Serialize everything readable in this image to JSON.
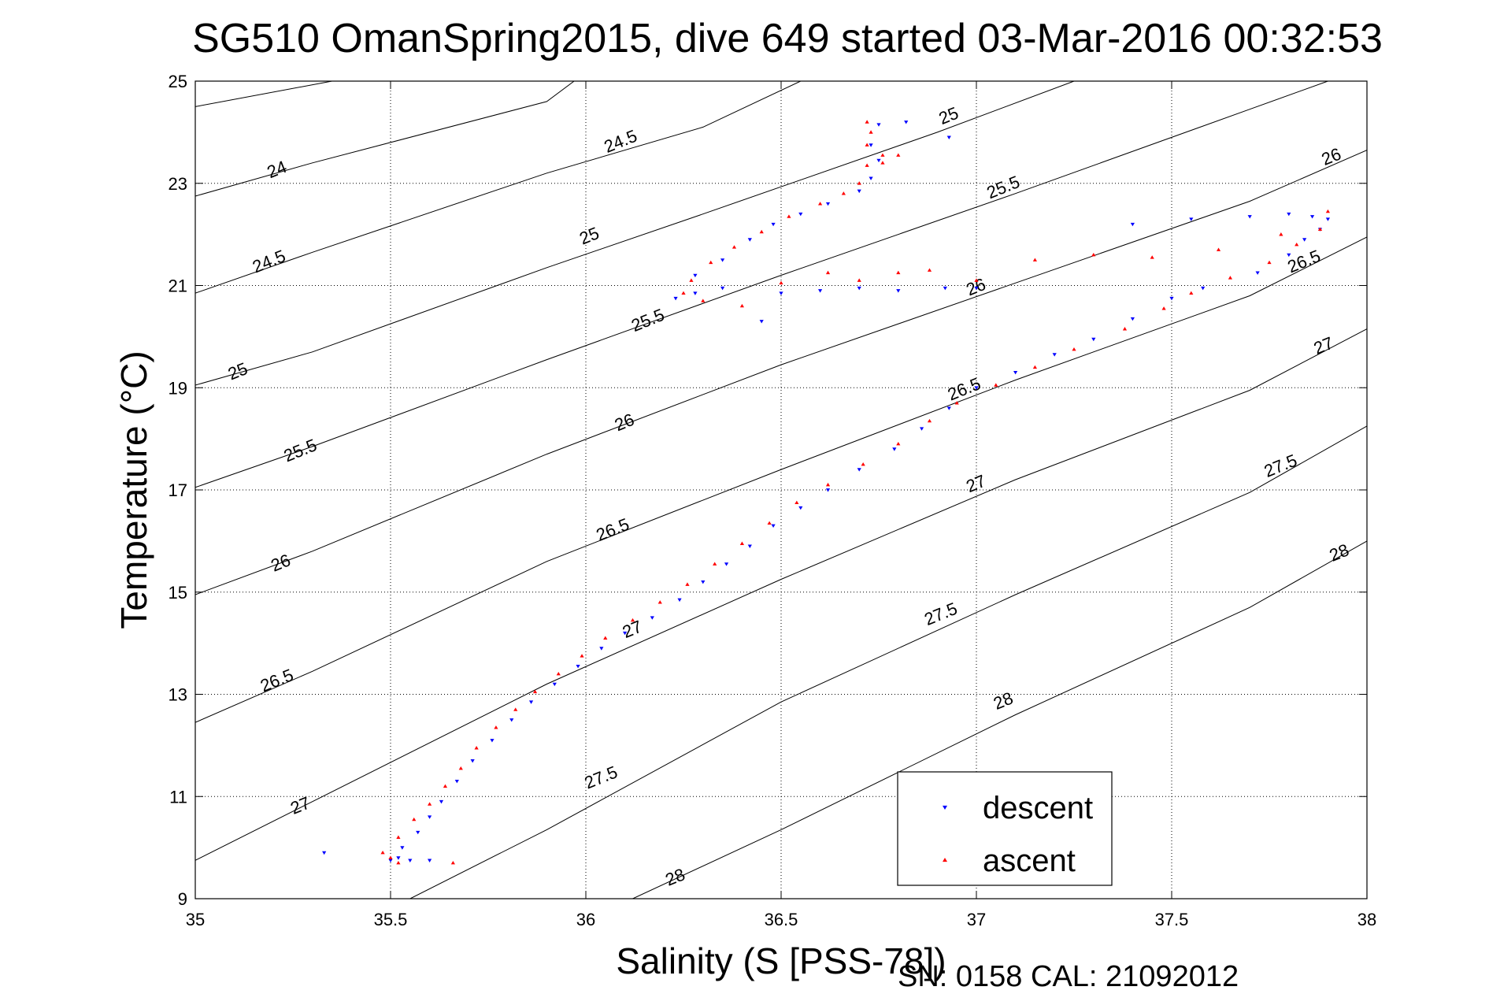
{
  "chart_data": {
    "type": "scatter",
    "title": "SG510 OmanSpring2015, dive 649 started 03-Mar-2016 00:32:53",
    "xlabel": "Salinity (S [PSS-78])",
    "ylabel": "Temperature (°C)",
    "xlim": [
      35,
      38
    ],
    "ylim": [
      9,
      25
    ],
    "xticks": [
      "35",
      "35.5",
      "36",
      "36.5",
      "37",
      "37.5",
      "38"
    ],
    "yticks": [
      "9",
      "11",
      "13",
      "15",
      "17",
      "19",
      "21",
      "23",
      "25"
    ],
    "grid": true,
    "legend_position": "bottom-right",
    "footer": "SN: 0158  CAL: 21092012",
    "series": [
      {
        "name": "descent",
        "color": "#0000ff",
        "marker": "triangle-down",
        "points": [
          [
            35.33,
            9.9
          ],
          [
            35.5,
            9.75
          ],
          [
            35.52,
            9.8
          ],
          [
            35.55,
            9.75
          ],
          [
            35.6,
            9.75
          ],
          [
            35.53,
            10.0
          ],
          [
            35.57,
            10.3
          ],
          [
            35.6,
            10.6
          ],
          [
            35.63,
            10.9
          ],
          [
            35.67,
            11.3
          ],
          [
            35.71,
            11.7
          ],
          [
            35.76,
            12.1
          ],
          [
            35.81,
            12.5
          ],
          [
            35.86,
            12.85
          ],
          [
            35.92,
            13.2
          ],
          [
            35.98,
            13.55
          ],
          [
            36.04,
            13.9
          ],
          [
            36.1,
            14.2
          ],
          [
            36.17,
            14.5
          ],
          [
            36.24,
            14.85
          ],
          [
            36.3,
            15.2
          ],
          [
            36.36,
            15.55
          ],
          [
            36.42,
            15.9
          ],
          [
            36.48,
            16.3
          ],
          [
            36.55,
            16.65
          ],
          [
            36.62,
            17.0
          ],
          [
            36.7,
            17.4
          ],
          [
            36.79,
            17.8
          ],
          [
            36.86,
            18.2
          ],
          [
            36.93,
            18.6
          ],
          [
            37.0,
            19.0
          ],
          [
            37.1,
            19.3
          ],
          [
            37.2,
            19.65
          ],
          [
            37.3,
            19.95
          ],
          [
            37.4,
            20.35
          ],
          [
            37.5,
            20.75
          ],
          [
            37.58,
            20.95
          ],
          [
            37.72,
            21.25
          ],
          [
            37.8,
            21.6
          ],
          [
            37.84,
            21.9
          ],
          [
            37.88,
            22.1
          ],
          [
            37.9,
            22.3
          ],
          [
            37.86,
            22.35
          ],
          [
            37.8,
            22.4
          ],
          [
            37.7,
            22.35
          ],
          [
            37.55,
            22.3
          ],
          [
            37.4,
            22.2
          ],
          [
            36.23,
            20.75
          ],
          [
            36.28,
            20.85
          ],
          [
            36.35,
            20.95
          ],
          [
            36.45,
            20.3
          ],
          [
            36.5,
            20.85
          ],
          [
            36.6,
            20.9
          ],
          [
            36.7,
            20.95
          ],
          [
            36.8,
            20.9
          ],
          [
            36.92,
            20.95
          ],
          [
            37.0,
            20.95
          ],
          [
            36.28,
            21.2
          ],
          [
            36.35,
            21.5
          ],
          [
            36.42,
            21.9
          ],
          [
            36.48,
            22.2
          ],
          [
            36.55,
            22.4
          ],
          [
            36.62,
            22.6
          ],
          [
            36.7,
            22.85
          ],
          [
            36.73,
            23.1
          ],
          [
            36.75,
            23.45
          ],
          [
            36.73,
            23.75
          ],
          [
            36.75,
            24.15
          ],
          [
            36.82,
            24.2
          ],
          [
            36.93,
            23.9
          ]
        ]
      },
      {
        "name": "ascent",
        "color": "#ff0000",
        "marker": "triangle-up",
        "points": [
          [
            35.48,
            9.9
          ],
          [
            35.5,
            9.8
          ],
          [
            35.52,
            9.7
          ],
          [
            35.66,
            9.7
          ],
          [
            35.52,
            10.2
          ],
          [
            35.56,
            10.55
          ],
          [
            35.6,
            10.85
          ],
          [
            35.64,
            11.2
          ],
          [
            35.68,
            11.55
          ],
          [
            35.72,
            11.95
          ],
          [
            35.77,
            12.35
          ],
          [
            35.82,
            12.7
          ],
          [
            35.87,
            13.05
          ],
          [
            35.93,
            13.4
          ],
          [
            35.99,
            13.75
          ],
          [
            36.05,
            14.1
          ],
          [
            36.12,
            14.45
          ],
          [
            36.19,
            14.8
          ],
          [
            36.26,
            15.15
          ],
          [
            36.33,
            15.55
          ],
          [
            36.4,
            15.95
          ],
          [
            36.47,
            16.35
          ],
          [
            36.54,
            16.75
          ],
          [
            36.62,
            17.1
          ],
          [
            36.71,
            17.5
          ],
          [
            36.8,
            17.9
          ],
          [
            36.88,
            18.35
          ],
          [
            36.95,
            18.7
          ],
          [
            37.05,
            19.05
          ],
          [
            37.15,
            19.4
          ],
          [
            37.25,
            19.75
          ],
          [
            37.38,
            20.15
          ],
          [
            37.48,
            20.55
          ],
          [
            37.55,
            20.85
          ],
          [
            37.65,
            21.15
          ],
          [
            37.75,
            21.45
          ],
          [
            37.82,
            21.8
          ],
          [
            37.88,
            22.1
          ],
          [
            37.9,
            22.45
          ],
          [
            37.78,
            22.0
          ],
          [
            37.62,
            21.7
          ],
          [
            37.45,
            21.55
          ],
          [
            37.3,
            21.6
          ],
          [
            37.15,
            21.5
          ],
          [
            37.0,
            21.1
          ],
          [
            36.88,
            21.3
          ],
          [
            36.8,
            21.25
          ],
          [
            36.7,
            21.1
          ],
          [
            36.62,
            21.25
          ],
          [
            36.5,
            21.05
          ],
          [
            36.4,
            20.6
          ],
          [
            36.3,
            20.7
          ],
          [
            36.25,
            20.85
          ],
          [
            36.27,
            21.1
          ],
          [
            36.32,
            21.45
          ],
          [
            36.38,
            21.75
          ],
          [
            36.45,
            22.05
          ],
          [
            36.52,
            22.35
          ],
          [
            36.6,
            22.6
          ],
          [
            36.66,
            22.8
          ],
          [
            36.7,
            23.0
          ],
          [
            36.72,
            23.35
          ],
          [
            36.76,
            23.55
          ],
          [
            36.72,
            23.75
          ],
          [
            36.73,
            24.0
          ],
          [
            36.72,
            24.2
          ],
          [
            36.8,
            23.55
          ],
          [
            36.76,
            23.4
          ]
        ]
      }
    ],
    "contours": [
      {
        "level": "24",
        "label_at": [
          35.21,
          23.25
        ]
      },
      {
        "level": "24.5",
        "label_at": [
          35.19,
          21.45
        ]
      },
      {
        "level": "24.5",
        "label_at": [
          36.09,
          23.8
        ]
      },
      {
        "level": "25",
        "label_at": [
          35.11,
          19.3
        ]
      },
      {
        "level": "25",
        "label_at": [
          36.01,
          21.95
        ]
      },
      {
        "level": "25",
        "label_at": [
          36.93,
          24.3
        ]
      },
      {
        "level": "25.5",
        "label_at": [
          35.27,
          17.75
        ]
      },
      {
        "level": "25.5",
        "label_at": [
          36.16,
          20.3
        ]
      },
      {
        "level": "25.5",
        "label_at": [
          37.07,
          22.9
        ]
      },
      {
        "level": "26",
        "label_at": [
          35.22,
          15.55
        ]
      },
      {
        "level": "26",
        "label_at": [
          36.1,
          18.3
        ]
      },
      {
        "level": "26",
        "label_at": [
          37.0,
          20.95
        ]
      },
      {
        "level": "26",
        "label_at": [
          37.91,
          23.5
        ]
      },
      {
        "level": "26.5",
        "label_at": [
          35.21,
          13.25
        ]
      },
      {
        "level": "26.5",
        "label_at": [
          36.07,
          16.2
        ]
      },
      {
        "level": "26.5",
        "label_at": [
          36.97,
          18.95
        ]
      },
      {
        "level": "26.5",
        "label_at": [
          37.84,
          21.45
        ]
      },
      {
        "level": "27",
        "label_at": [
          35.27,
          10.8
        ]
      },
      {
        "level": "27",
        "label_at": [
          36.12,
          14.25
        ]
      },
      {
        "level": "27",
        "label_at": [
          37.0,
          17.1
        ]
      },
      {
        "level": "27",
        "label_at": [
          37.89,
          19.8
        ]
      },
      {
        "level": "27.5",
        "label_at": [
          36.04,
          11.35
        ]
      },
      {
        "level": "27.5",
        "label_at": [
          36.91,
          14.55
        ]
      },
      {
        "level": "27.5",
        "label_at": [
          37.78,
          17.45
        ]
      },
      {
        "level": "28",
        "label_at": [
          36.23,
          9.4
        ]
      },
      {
        "level": "28",
        "label_at": [
          37.07,
          12.85
        ]
      },
      {
        "level": "28",
        "label_at": [
          37.93,
          15.75
        ]
      }
    ],
    "contour_lines": [
      [
        [
          35.0,
          24.5
        ],
        [
          35.35,
          25.0
        ]
      ],
      [
        [
          35.0,
          22.75
        ],
        [
          35.3,
          23.4
        ],
        [
          35.9,
          24.6
        ],
        [
          35.97,
          25.0
        ]
      ],
      [
        [
          35.0,
          20.85
        ],
        [
          35.3,
          21.65
        ],
        [
          35.9,
          23.2
        ],
        [
          36.3,
          24.1
        ],
        [
          36.55,
          25.0
        ]
      ],
      [
        [
          35.0,
          19.05
        ],
        [
          35.3,
          19.7
        ],
        [
          35.9,
          21.35
        ],
        [
          36.3,
          22.4
        ],
        [
          36.9,
          24.0
        ],
        [
          37.25,
          25.0
        ]
      ],
      [
        [
          35.0,
          17.05
        ],
        [
          35.3,
          17.85
        ],
        [
          35.9,
          19.55
        ],
        [
          36.5,
          21.2
        ],
        [
          37.1,
          22.8
        ],
        [
          37.7,
          24.45
        ],
        [
          37.9,
          25.0
        ]
      ],
      [
        [
          35.0,
          14.95
        ],
        [
          35.3,
          15.8
        ],
        [
          35.9,
          17.7
        ],
        [
          36.5,
          19.45
        ],
        [
          37.1,
          21.05
        ],
        [
          37.7,
          22.65
        ],
        [
          38.0,
          23.65
        ]
      ],
      [
        [
          35.0,
          12.45
        ],
        [
          35.3,
          13.45
        ],
        [
          35.9,
          15.6
        ],
        [
          36.5,
          17.4
        ],
        [
          37.1,
          19.15
        ],
        [
          37.7,
          20.8
        ],
        [
          38.0,
          21.95
        ]
      ],
      [
        [
          35.0,
          9.75
        ],
        [
          35.3,
          10.9
        ],
        [
          35.9,
          13.2
        ],
        [
          36.5,
          15.25
        ],
        [
          37.1,
          17.2
        ],
        [
          37.7,
          18.95
        ],
        [
          38.0,
          20.15
        ]
      ],
      [
        [
          35.55,
          9.0
        ],
        [
          35.9,
          10.35
        ],
        [
          36.5,
          12.85
        ],
        [
          37.1,
          14.95
        ],
        [
          37.7,
          16.95
        ],
        [
          38.0,
          18.25
        ]
      ],
      [
        [
          36.12,
          9.0
        ],
        [
          36.5,
          10.35
        ],
        [
          37.1,
          12.6
        ],
        [
          37.7,
          14.7
        ],
        [
          38.0,
          16.0
        ]
      ]
    ],
    "legend": [
      {
        "label": "descent",
        "color": "#0000ff",
        "marker": "triangle-down"
      },
      {
        "label": "ascent",
        "color": "#ff0000",
        "marker": "triangle-up"
      }
    ]
  }
}
